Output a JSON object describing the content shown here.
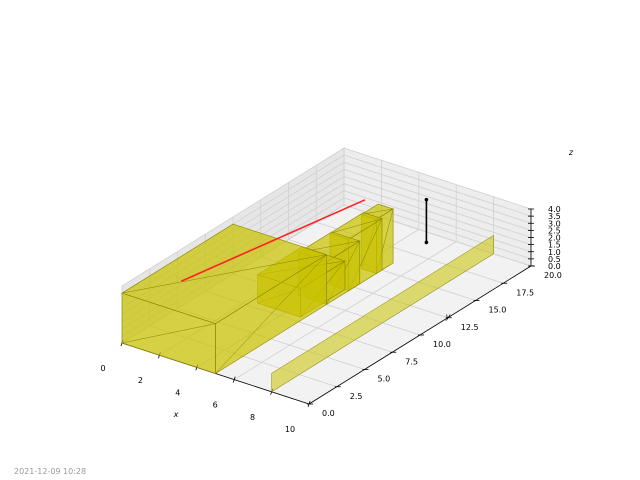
{
  "chart_data": {
    "type": "3d",
    "xlim": [
      0,
      10
    ],
    "ylim": [
      0,
      20
    ],
    "zlim": [
      0,
      4
    ],
    "xticks": [
      "0",
      "2",
      "4",
      "6",
      "8",
      "10"
    ],
    "yticks": [
      "0.0",
      "2.5",
      "5.0",
      "7.5",
      "10.0",
      "12.5",
      "15.0",
      "17.5",
      "20.0"
    ],
    "zticks": [
      "0.0",
      "0.5",
      "1.0",
      "1.5",
      "2.0",
      "2.5",
      "3.0",
      "3.5",
      "4.0"
    ],
    "xlabel": "x",
    "ylabel": "y",
    "zlabel": "z",
    "grid": true,
    "box_color": "#c9c200",
    "boxes": [
      {
        "x": [
          0,
          5
        ],
        "y": [
          0,
          10
        ],
        "z": [
          0,
          3.5
        ]
      },
      {
        "x": [
          2.5,
          4.8
        ],
        "y": [
          8,
          12
        ],
        "z": [
          0,
          2
        ]
      },
      {
        "x": [
          3.5,
          5
        ],
        "y": [
          10,
          13
        ],
        "z": [
          0,
          3
        ]
      },
      {
        "x": [
          4,
          5
        ],
        "y": [
          12,
          15
        ],
        "z": [
          0,
          3.6
        ]
      },
      {
        "x": [
          4.2,
          5
        ],
        "y": [
          14.5,
          16
        ],
        "z": [
          0,
          3.8
        ]
      }
    ],
    "panel": {
      "x": 8,
      "y": [
        0,
        20
      ],
      "z": [
        0,
        1.3
      ]
    },
    "lines": [
      {
        "color": "#ff2020",
        "points": [
          [
            0.2,
            5,
            2
          ],
          [
            3.5,
            16,
            3.8
          ]
        ]
      },
      {
        "color": "#000000",
        "points": [
          [
            5,
            19,
            0
          ],
          [
            5,
            19,
            3
          ]
        ],
        "markers": true
      }
    ]
  },
  "timestamp": "2021-12-09 10:28"
}
